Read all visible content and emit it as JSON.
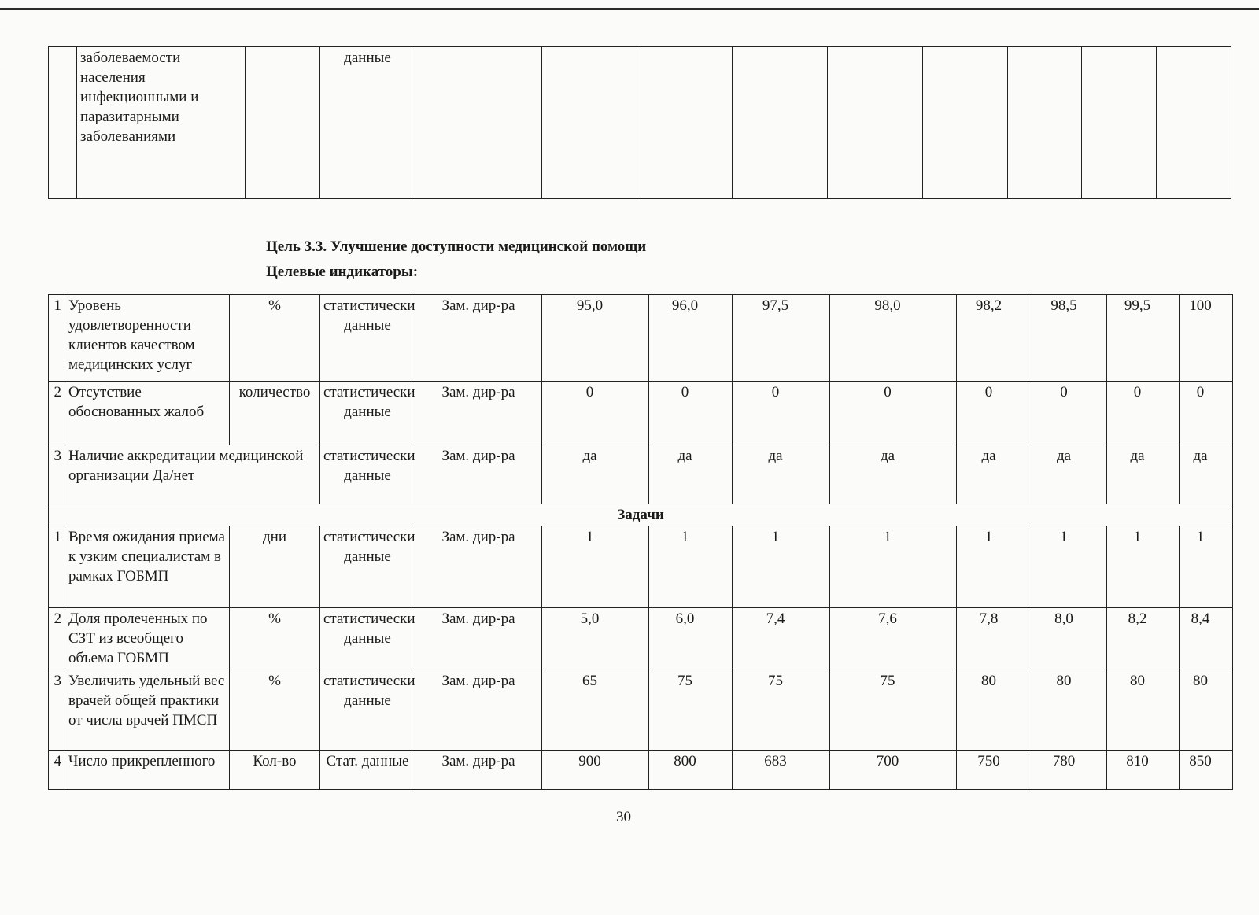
{
  "top_table": {
    "indicator": "заболеваемости населения инфекционными и паразитарными заболеваниями",
    "source": "данные"
  },
  "goal": {
    "title": "Цель 3.3. Улучшение доступности медицинской помощи",
    "subtitle": "Целевые индикаторы:"
  },
  "indicators": [
    {
      "n": "1",
      "name": "Уровень удовлетворенности клиентов качеством медицинских услуг",
      "unit": "%",
      "source": "статистические данные",
      "resp": "Зам. дир-ра",
      "values": [
        "95,0",
        "96,0",
        "97,5",
        "98,0",
        "98,2",
        "98,5",
        "99,5",
        "100"
      ]
    },
    {
      "n": "2",
      "name": "Отсутствие обоснованных жалоб",
      "unit": "количество",
      "source": "статистические данные",
      "resp": "Зам. дир-ра",
      "values": [
        "0",
        "0",
        "0",
        "0",
        "0",
        "0",
        "0",
        "0"
      ]
    },
    {
      "n": "3",
      "name": "Наличие аккредитации медицинской организации Да/нет",
      "unit": "",
      "source": "статистические данные",
      "resp": "Зам. дир-ра",
      "values": [
        "да",
        "да",
        "да",
        "да",
        "да",
        "да",
        "да",
        "да"
      ]
    }
  ],
  "tasks_header": "Задачи",
  "tasks": [
    {
      "n": "1",
      "name": "Время ожидания приема к узким специалистам в рамках ГОБМП",
      "unit": "дни",
      "source": "статистические данные",
      "resp": "Зам. дир-ра",
      "values": [
        "1",
        "1",
        "1",
        "1",
        "1",
        "1",
        "1",
        "1"
      ]
    },
    {
      "n": "2",
      "name": "Доля пролеченных по СЗТ из всеобщего объема ГОБМП",
      "unit": "%",
      "source": "статистические данные",
      "resp": "Зам. дир-ра",
      "values": [
        "5,0",
        "6,0",
        "7,4",
        "7,6",
        "7,8",
        "8,0",
        "8,2",
        "8,4"
      ]
    },
    {
      "n": "3",
      "name": "Увеличить удельный вес врачей общей практики от числа врачей ПМСП",
      "unit": "%",
      "source": "статистические данные",
      "resp": "Зам. дир-ра",
      "values": [
        "65",
        "75",
        "75",
        "75",
        "80",
        "80",
        "80",
        "80"
      ]
    },
    {
      "n": "4",
      "name": "Число прикрепленного",
      "unit": "Кол-во",
      "source": "Стат. данные",
      "resp": "Зам. дир-ра",
      "values": [
        "900",
        "800",
        "683",
        "700",
        "750",
        "780",
        "810",
        "850"
      ]
    }
  ],
  "page_number": "30"
}
